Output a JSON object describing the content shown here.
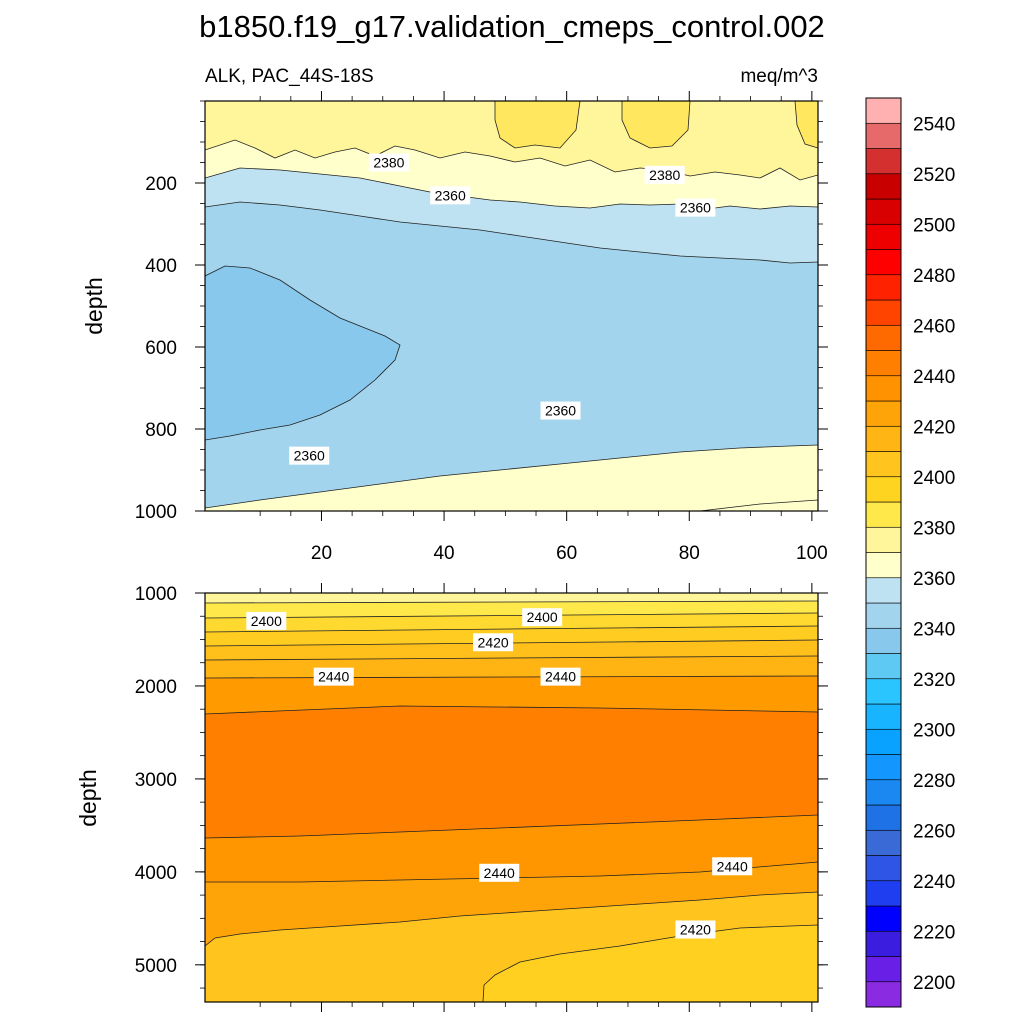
{
  "chart_data": {
    "type": "contour",
    "title": "b1850.f19_g17.validation_cmeps_control.002",
    "variable_label": "ALK, PAC_44S-18S",
    "units_label": "meq/m^3",
    "x_ticks": [
      20,
      40,
      60,
      80,
      100
    ],
    "upper_panel": {
      "ylabel": "depth",
      "ylim": [
        0,
        1000
      ],
      "y_ticks": [
        200,
        400,
        600,
        800,
        1000
      ],
      "contour_labels": [
        {
          "text": "2380",
          "x": 31,
          "y": 150
        },
        {
          "text": "2380",
          "x": 76,
          "y": 180
        },
        {
          "text": "2360",
          "x": 41,
          "y": 230
        },
        {
          "text": "2360",
          "x": 81,
          "y": 260
        },
        {
          "text": "2360",
          "x": 59,
          "y": 755
        },
        {
          "text": "2360",
          "x": 18,
          "y": 865
        }
      ]
    },
    "lower_panel": {
      "ylabel": "depth",
      "ylim": [
        1000,
        5400
      ],
      "y_ticks": [
        1000,
        2000,
        3000,
        4000,
        5000
      ],
      "contour_labels": [
        {
          "text": "2400",
          "x": 11,
          "y": 1300
        },
        {
          "text": "2400",
          "x": 56,
          "y": 1260
        },
        {
          "text": "2420",
          "x": 48,
          "y": 1530
        },
        {
          "text": "2440",
          "x": 22,
          "y": 1900
        },
        {
          "text": "2440",
          "x": 59,
          "y": 1900
        },
        {
          "text": "2440",
          "x": 49,
          "y": 4010
        },
        {
          "text": "2440",
          "x": 87,
          "y": 3940
        },
        {
          "text": "2420",
          "x": 81,
          "y": 4620
        }
      ]
    },
    "colorbar": {
      "labels": [
        "2200",
        "2220",
        "2240",
        "2260",
        "2280",
        "2300",
        "2320",
        "2340",
        "2360",
        "2380",
        "2400",
        "2420",
        "2440",
        "2460",
        "2480",
        "2500",
        "2520",
        "2540"
      ],
      "colors": [
        "#8a2be2",
        "#6a1fe6",
        "#3b1de0",
        "#0000ff",
        "#1f3ef0",
        "#2e55e6",
        "#3a6ad6",
        "#1e72e6",
        "#1a88f0",
        "#1496ff",
        "#0aa2ff",
        "#18b4ff",
        "#2ac4ff",
        "#5ecaf4",
        "#88c8ec",
        "#a2d4ee",
        "#bee2f2",
        "#ffffcc",
        "#fff59a",
        "#ffe84a",
        "#ffd420",
        "#ffc41e",
        "#ffb514",
        "#ffa408",
        "#ff9200",
        "#ff7f00",
        "#ff6a00",
        "#ff4400",
        "#ff2200",
        "#ff0000",
        "#ee0000",
        "#d80000",
        "#c80000",
        "#d43030",
        "#e66a6a",
        "#ffb0b0"
      ]
    }
  }
}
